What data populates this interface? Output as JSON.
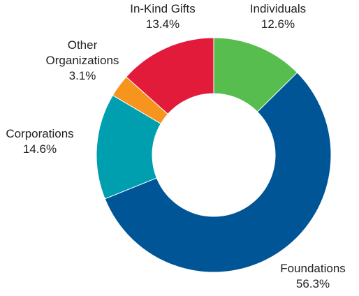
{
  "chart_data": {
    "type": "pie",
    "donut": true,
    "title": "",
    "start_angle_deg": 0,
    "direction": "clockwise",
    "slices": [
      {
        "label": "Individuals",
        "value": 12.6,
        "value_label": "12.6%",
        "color": "#56bd4e"
      },
      {
        "label": "Foundations",
        "value": 56.3,
        "value_label": "56.3%",
        "color": "#005596"
      },
      {
        "label": "Corporations",
        "value": 14.6,
        "value_label": "14.6%",
        "color": "#009fb0"
      },
      {
        "label": "Other Organizations",
        "label_lines": [
          "Other",
          "Organizations"
        ],
        "value": 3.1,
        "value_label": "3.1%",
        "color": "#f7941d"
      },
      {
        "label": "In-Kind Gifts",
        "value": 13.4,
        "value_label": "13.4%",
        "color": "#e31b3b"
      }
    ]
  }
}
